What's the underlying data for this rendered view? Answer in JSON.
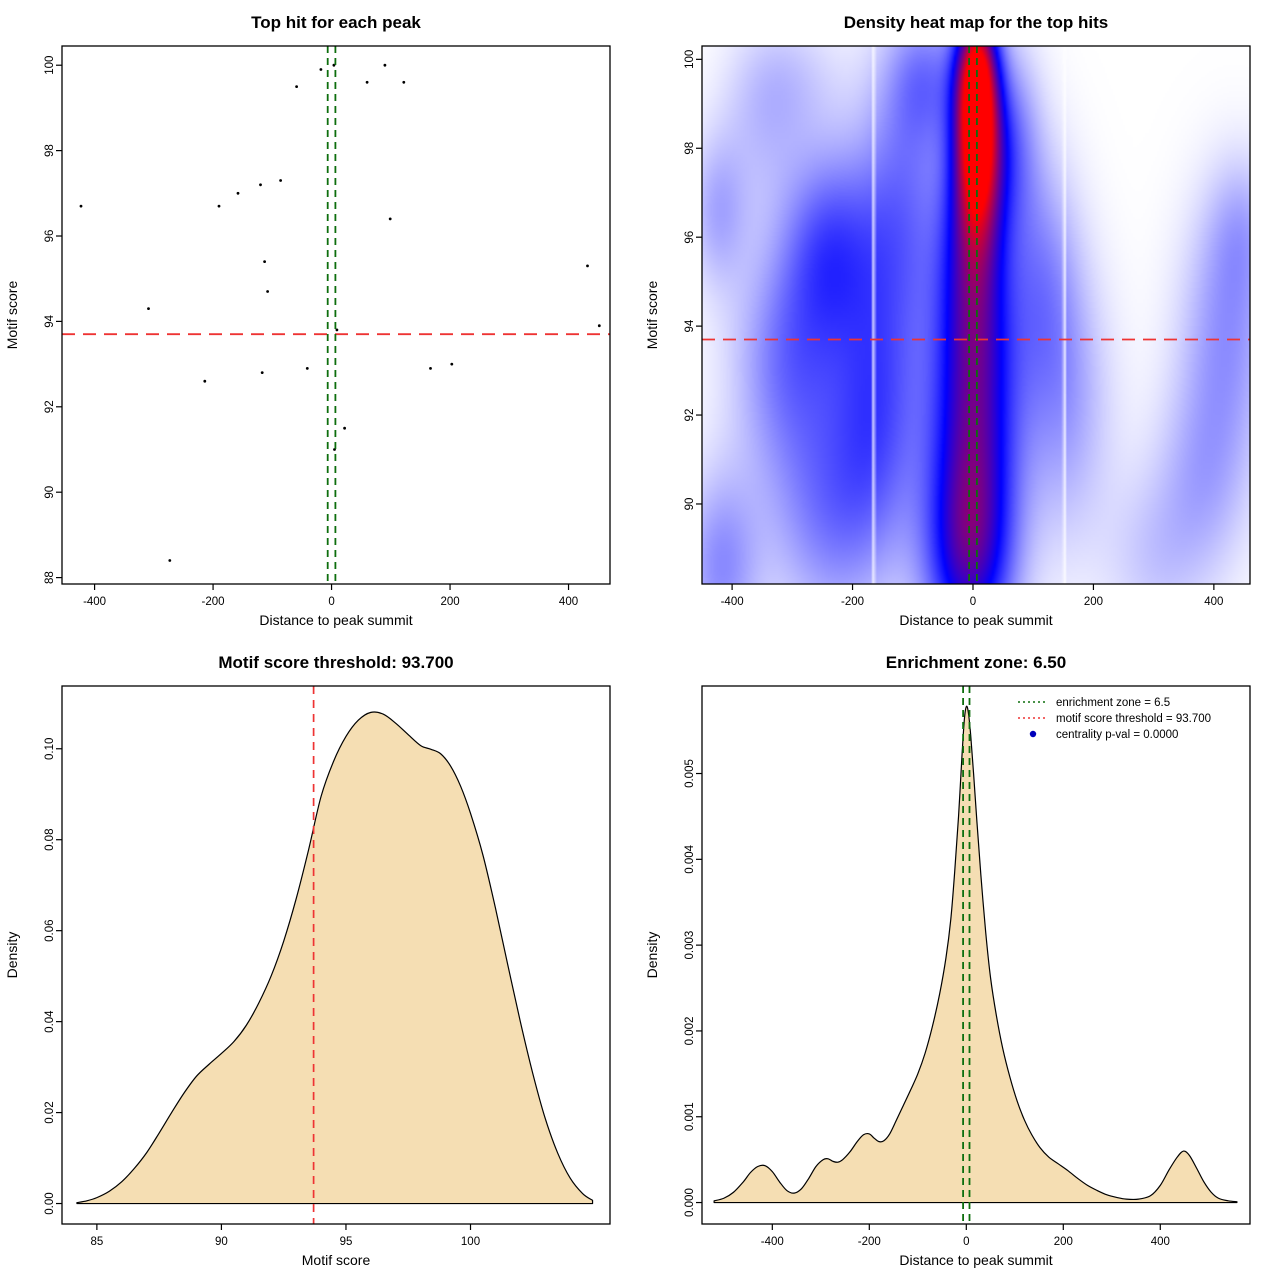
{
  "page": {
    "background": "#ffffff"
  },
  "colors": {
    "threshold_red": "#ee3333",
    "zone_green": "#0d6e0d",
    "density_fill": "#f5deb3",
    "curve_stroke": "#000000",
    "point_black": "#000000",
    "legend_point_blue": "#0000bb",
    "axis_black": "#000000"
  },
  "values": {
    "motif_score_threshold": 93.7,
    "enrichment_zone_half_width": 6.5,
    "centrality_p_val": "0.0000"
  },
  "chart_data": [
    {
      "id": "top-hit-scatter",
      "type": "scatter",
      "title": "Top hit for each peak",
      "xlabel": "Distance to peak summit",
      "ylabel": "Motif score",
      "xlim": [
        -455,
        470
      ],
      "ylim": [
        87.85,
        100.45
      ],
      "xticks": [
        -400,
        -200,
        0,
        200,
        400
      ],
      "yticks": [
        88,
        90,
        92,
        94,
        96,
        98,
        100
      ],
      "red_hline": 93.7,
      "green_vlines": [
        -6.5,
        6.5
      ],
      "points": [
        [
          -423,
          96.7
        ],
        [
          -309,
          94.3
        ],
        [
          -273,
          88.4
        ],
        [
          -214,
          92.6
        ],
        [
          -190,
          96.7
        ],
        [
          -158,
          97.0
        ],
        [
          -120,
          97.2
        ],
        [
          -117,
          92.8
        ],
        [
          -113,
          95.4
        ],
        [
          -108,
          94.7
        ],
        [
          -86,
          97.3
        ],
        [
          -59,
          99.5
        ],
        [
          -41,
          92.9
        ],
        [
          -18,
          99.9
        ],
        [
          4,
          100.0
        ],
        [
          9,
          93.8
        ],
        [
          5,
          91.0
        ],
        [
          22,
          91.5
        ],
        [
          60,
          99.6
        ],
        [
          90,
          100.0
        ],
        [
          99,
          96.4
        ],
        [
          122,
          99.6
        ],
        [
          167,
          92.9
        ],
        [
          203,
          93.0
        ],
        [
          432,
          95.3
        ],
        [
          452,
          93.9
        ]
      ]
    },
    {
      "id": "top-hit-density-heatmap",
      "type": "heatmap",
      "title": "Density heat map for the top hits",
      "xlabel": "Distance to peak summit",
      "ylabel": "Motif score",
      "xlim": [
        -450,
        460
      ],
      "ylim": [
        88.2,
        100.3
      ],
      "xticks": [
        -400,
        -200,
        0,
        200,
        400
      ],
      "yticks": [
        90,
        92,
        94,
        96,
        98,
        100
      ],
      "red_hline": 93.7,
      "green_vlines": [
        -6.5,
        6.5
      ],
      "colormap": [
        "#ffffff",
        "#0000ff",
        "#ff0000"
      ],
      "white_gaps": [
        -165,
        152
      ],
      "blobs": [
        {
          "x": 5,
          "y": 100.1,
          "sx": 24,
          "sy": 1.0,
          "a": 0.5
        },
        {
          "x": 5,
          "y": 99.0,
          "sx": 26,
          "sy": 1.2,
          "a": 0.6
        },
        {
          "x": 5,
          "y": 97.6,
          "sx": 28,
          "sy": 1.3,
          "a": 0.55
        },
        {
          "x": 0,
          "y": 95.8,
          "sx": 36,
          "sy": 1.7,
          "a": 0.36
        },
        {
          "x": 0,
          "y": 93.8,
          "sx": 46,
          "sy": 2.0,
          "a": 0.33
        },
        {
          "x": 0,
          "y": 91.6,
          "sx": 50,
          "sy": 2.0,
          "a": 0.33
        },
        {
          "x": -5,
          "y": 89.6,
          "sx": 52,
          "sy": 1.8,
          "a": 0.31
        },
        {
          "x": -10,
          "y": 88.4,
          "sx": 52,
          "sy": 1.5,
          "a": 0.29
        },
        {
          "x": -80,
          "y": 99.6,
          "sx": 45,
          "sy": 1.1,
          "a": 0.22
        },
        {
          "x": -120,
          "y": 96.6,
          "sx": 55,
          "sy": 2.2,
          "a": 0.26
        },
        {
          "x": 60,
          "y": 98.2,
          "sx": 35,
          "sy": 1.5,
          "a": 0.24
        },
        {
          "x": -240,
          "y": 95.8,
          "sx": 55,
          "sy": 1.6,
          "a": 0.3
        },
        {
          "x": -305,
          "y": 93.2,
          "sx": 65,
          "sy": 1.9,
          "a": 0.26
        },
        {
          "x": -160,
          "y": 92.2,
          "sx": 55,
          "sy": 2.2,
          "a": 0.3
        },
        {
          "x": -240,
          "y": 89.7,
          "sx": 70,
          "sy": 1.8,
          "a": 0.22
        },
        {
          "x": -420,
          "y": 88.6,
          "sx": 45,
          "sy": 1.5,
          "a": 0.22
        },
        {
          "x": -425,
          "y": 96.6,
          "sx": 35,
          "sy": 1.2,
          "a": 0.16
        },
        {
          "x": -350,
          "y": 98.6,
          "sx": 50,
          "sy": 1.4,
          "a": 0.1
        },
        {
          "x": -300,
          "y": 99.6,
          "sx": 60,
          "sy": 1.0,
          "a": 0.08
        },
        {
          "x": 110,
          "y": 95.0,
          "sx": 45,
          "sy": 2.0,
          "a": 0.2
        },
        {
          "x": 150,
          "y": 92.2,
          "sx": 55,
          "sy": 2.2,
          "a": 0.17
        },
        {
          "x": 420,
          "y": 93.8,
          "sx": 55,
          "sy": 2.0,
          "a": 0.2
        },
        {
          "x": 380,
          "y": 90.6,
          "sx": 55,
          "sy": 1.6,
          "a": 0.14
        },
        {
          "x": 445,
          "y": 96.2,
          "sx": 40,
          "sy": 1.2,
          "a": 0.12
        },
        {
          "x": 300,
          "y": 88.8,
          "sx": 60,
          "sy": 1.4,
          "a": 0.1
        }
      ]
    },
    {
      "id": "motif-score-density",
      "type": "density",
      "title": "Motif score threshold: 93.700",
      "xlabel": "Motif score",
      "ylabel": "Density",
      "xlim": [
        83.6,
        105.6
      ],
      "ylim": [
        -0.0045,
        0.1138
      ],
      "xticks": [
        85,
        90,
        95,
        100
      ],
      "yticks": [
        0,
        0.02,
        0.04,
        0.06,
        0.08,
        0.1
      ],
      "ydec": 2,
      "red_vline": 93.7,
      "curve": [
        [
          84.2,
          0.0002
        ],
        [
          84.6,
          0.0006
        ],
        [
          85,
          0.0013
        ],
        [
          85.5,
          0.0027
        ],
        [
          86,
          0.0048
        ],
        [
          86.5,
          0.0077
        ],
        [
          87,
          0.0112
        ],
        [
          87.5,
          0.0155
        ],
        [
          88,
          0.02
        ],
        [
          88.5,
          0.0243
        ],
        [
          89,
          0.028
        ],
        [
          89.5,
          0.0306
        ],
        [
          90,
          0.033
        ],
        [
          90.5,
          0.0356
        ],
        [
          91,
          0.0392
        ],
        [
          91.5,
          0.0441
        ],
        [
          92,
          0.0501
        ],
        [
          92.5,
          0.0577
        ],
        [
          93,
          0.067
        ],
        [
          93.5,
          0.0778
        ],
        [
          94,
          0.0895
        ],
        [
          94.5,
          0.0972
        ],
        [
          95,
          0.1027
        ],
        [
          95.5,
          0.1063
        ],
        [
          96,
          0.108
        ],
        [
          96.5,
          0.1076
        ],
        [
          97,
          0.1056
        ],
        [
          97.5,
          0.1031
        ],
        [
          98,
          0.1007
        ],
        [
          98.4,
          0.0999
        ],
        [
          98.8,
          0.0989
        ],
        [
          99.2,
          0.0962
        ],
        [
          99.6,
          0.0918
        ],
        [
          100,
          0.0858
        ],
        [
          100.5,
          0.0766
        ],
        [
          101,
          0.065
        ],
        [
          101.5,
          0.0524
        ],
        [
          102,
          0.04
        ],
        [
          102.5,
          0.0286
        ],
        [
          103,
          0.0187
        ],
        [
          103.5,
          0.0111
        ],
        [
          104,
          0.0056
        ],
        [
          104.5,
          0.0022
        ],
        [
          104.9,
          0.0007
        ]
      ]
    },
    {
      "id": "summit-distance-density",
      "type": "density",
      "title": "Enrichment zone: 6.50",
      "xlabel": "Distance to peak summit",
      "ylabel": "Density",
      "xlim": [
        -545,
        585
      ],
      "ylim": [
        -0.00025,
        0.00602
      ],
      "xticks": [
        -400,
        -200,
        0,
        200,
        400
      ],
      "yticks": [
        0,
        0.001,
        0.002,
        0.003,
        0.004,
        0.005
      ],
      "ydec": 3,
      "green_vlines": [
        -6.5,
        6.5
      ],
      "legend": [
        {
          "type": "line",
          "color_key": "zone_green",
          "label": "enrichment zone = 6.5"
        },
        {
          "type": "line",
          "color_key": "threshold_red",
          "label": "motif score threshold = 93.700"
        },
        {
          "type": "point",
          "color_key": "legend_point_blue",
          "label": "centrality p-val = 0.0000"
        }
      ],
      "curve": [
        [
          -520,
          2e-05
        ],
        [
          -500,
          5e-05
        ],
        [
          -480,
          0.00012
        ],
        [
          -460,
          0.00024
        ],
        [
          -445,
          0.00035
        ],
        [
          -430,
          0.00042
        ],
        [
          -415,
          0.00043
        ],
        [
          -400,
          0.00036
        ],
        [
          -385,
          0.00024
        ],
        [
          -370,
          0.00014
        ],
        [
          -355,
          0.00011
        ],
        [
          -340,
          0.00016
        ],
        [
          -325,
          0.00028
        ],
        [
          -310,
          0.00042
        ],
        [
          -295,
          0.0005
        ],
        [
          -285,
          0.00051
        ],
        [
          -275,
          0.00048
        ],
        [
          -265,
          0.00047
        ],
        [
          -255,
          0.0005
        ],
        [
          -240,
          0.00059
        ],
        [
          -225,
          0.00071
        ],
        [
          -212,
          0.00079
        ],
        [
          -200,
          0.0008
        ],
        [
          -190,
          0.00075
        ],
        [
          -180,
          0.00071
        ],
        [
          -170,
          0.00072
        ],
        [
          -158,
          0.0008
        ],
        [
          -145,
          0.00095
        ],
        [
          -130,
          0.00113
        ],
        [
          -115,
          0.00131
        ],
        [
          -100,
          0.0015
        ],
        [
          -85,
          0.00174
        ],
        [
          -70,
          0.00205
        ],
        [
          -55,
          0.00243
        ],
        [
          -42,
          0.00285
        ],
        [
          -32,
          0.0033
        ],
        [
          -24,
          0.00385
        ],
        [
          -16,
          0.0045
        ],
        [
          -9,
          0.0052
        ],
        [
          -4,
          0.00563
        ],
        [
          0,
          0.00578
        ],
        [
          4,
          0.00572
        ],
        [
          9,
          0.00545
        ],
        [
          15,
          0.005
        ],
        [
          22,
          0.00443
        ],
        [
          30,
          0.00382
        ],
        [
          40,
          0.00315
        ],
        [
          50,
          0.00262
        ],
        [
          62,
          0.00218
        ],
        [
          75,
          0.0018
        ],
        [
          90,
          0.00146
        ],
        [
          105,
          0.00118
        ],
        [
          120,
          0.00096
        ],
        [
          135,
          0.00079
        ],
        [
          152,
          0.00064
        ],
        [
          170,
          0.00053
        ],
        [
          190,
          0.00045
        ],
        [
          210,
          0.00037
        ],
        [
          230,
          0.00028
        ],
        [
          250,
          0.0002
        ],
        [
          270,
          0.00014
        ],
        [
          290,
          9e-05
        ],
        [
          310,
          6e-05
        ],
        [
          330,
          4e-05
        ],
        [
          355,
          4e-05
        ],
        [
          380,
          8e-05
        ],
        [
          400,
          0.0002
        ],
        [
          418,
          0.00038
        ],
        [
          435,
          0.00053
        ],
        [
          448,
          0.0006
        ],
        [
          460,
          0.00055
        ],
        [
          475,
          0.0004
        ],
        [
          490,
          0.00024
        ],
        [
          505,
          0.00012
        ],
        [
          520,
          5e-05
        ],
        [
          540,
          2e-05
        ],
        [
          558,
          1e-05
        ]
      ]
    }
  ]
}
